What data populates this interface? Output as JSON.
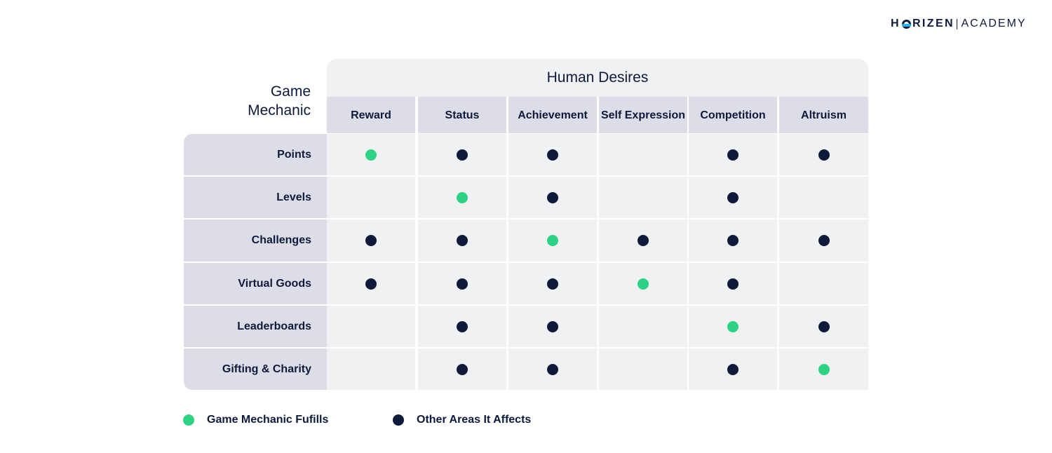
{
  "brand": {
    "prefix": "H",
    "suffix": "RIZEN",
    "academy": "ACADEMY"
  },
  "row_axis_title": {
    "line1": "Game",
    "line2": "Mechanic"
  },
  "column_axis_title": "Human Desires",
  "colors": {
    "fulfills": "#2dd383",
    "affects": "#0e1a3c"
  },
  "columns": [
    "Reward",
    "Status",
    "Achievement",
    "Self Expression",
    "Competition",
    "Altruism"
  ],
  "rows": [
    {
      "label": "Points",
      "cells": [
        "fulfills",
        "affects",
        "affects",
        "",
        "affects",
        "affects"
      ]
    },
    {
      "label": "Levels",
      "cells": [
        "",
        "fulfills",
        "affects",
        "",
        "affects",
        ""
      ]
    },
    {
      "label": "Challenges",
      "cells": [
        "affects",
        "affects",
        "fulfills",
        "affects",
        "affects",
        "affects"
      ]
    },
    {
      "label": "Virtual Goods",
      "cells": [
        "affects",
        "affects",
        "affects",
        "fulfills",
        "affects",
        ""
      ]
    },
    {
      "label": "Leaderboards",
      "cells": [
        "",
        "affects",
        "affects",
        "",
        "fulfills",
        "affects"
      ]
    },
    {
      "label": "Gifting & Charity",
      "cells": [
        "",
        "affects",
        "affects",
        "",
        "affects",
        "fulfills"
      ]
    }
  ],
  "legend": [
    {
      "key": "fulfills",
      "label": "Game Mechanic Fufills"
    },
    {
      "key": "affects",
      "label": "Other Areas It Affects"
    }
  ]
}
